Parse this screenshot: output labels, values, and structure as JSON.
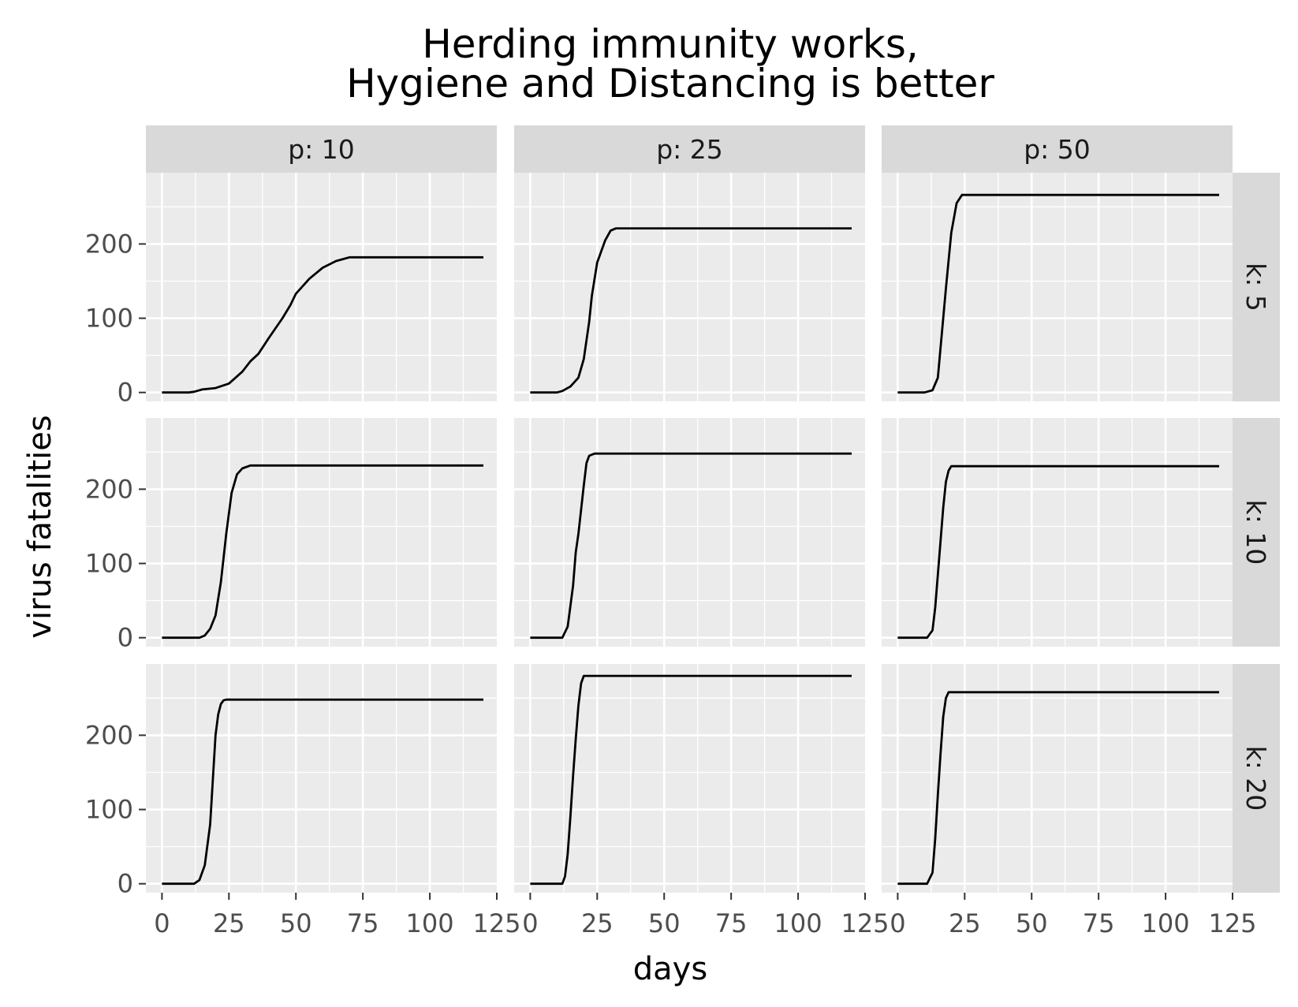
{
  "chart_data": {
    "type": "line",
    "title": [
      "Herding immunity works,",
      "Hygiene and Distancing is better"
    ],
    "xlabel": "days",
    "ylabel": "virus fatalities",
    "xlim": [
      -6,
      125
    ],
    "ylim": [
      -12,
      296
    ],
    "x_ticks": [
      0,
      25,
      50,
      75,
      100,
      125
    ],
    "y_ticks": [
      0,
      100,
      200
    ],
    "columns": [
      "p: 10",
      "p: 25",
      "p: 50"
    ],
    "rows": [
      "k: 5",
      "k: 10",
      "k: 20"
    ],
    "grid": true,
    "legend": "none",
    "colors": {
      "panel_bg": "#ebebeb",
      "grid_major": "#ffffff",
      "strip_bg": "#d9d9d9",
      "line": "#000000"
    },
    "facets": [
      {
        "row": 0,
        "col": 0,
        "x": [
          0,
          10,
          12,
          15,
          20,
          25,
          30,
          33,
          36,
          40,
          45,
          48,
          50,
          55,
          60,
          65,
          70,
          80,
          120
        ],
        "y": [
          0,
          0,
          1,
          4,
          6,
          12,
          28,
          42,
          52,
          74,
          100,
          118,
          133,
          153,
          168,
          177,
          182,
          182,
          182
        ]
      },
      {
        "row": 0,
        "col": 1,
        "x": [
          0,
          10,
          12,
          15,
          18,
          20,
          22,
          23,
          25,
          28,
          30,
          32,
          40,
          120
        ],
        "y": [
          0,
          0,
          2,
          8,
          20,
          45,
          95,
          130,
          175,
          205,
          218,
          221,
          221,
          221
        ]
      },
      {
        "row": 0,
        "col": 2,
        "x": [
          0,
          10,
          13,
          15,
          16,
          18,
          20,
          22,
          24,
          26,
          120
        ],
        "y": [
          0,
          0,
          3,
          20,
          60,
          140,
          215,
          255,
          266,
          266,
          266
        ]
      },
      {
        "row": 1,
        "col": 0,
        "x": [
          0,
          14,
          16,
          18,
          20,
          22,
          24,
          26,
          28,
          30,
          33,
          40,
          120
        ],
        "y": [
          0,
          0,
          3,
          12,
          30,
          75,
          140,
          195,
          220,
          228,
          232,
          232,
          232
        ]
      },
      {
        "row": 1,
        "col": 1,
        "x": [
          0,
          12,
          14,
          16,
          17,
          18,
          20,
          21,
          22,
          24,
          30,
          120
        ],
        "y": [
          0,
          0,
          15,
          70,
          115,
          140,
          205,
          235,
          245,
          248,
          248,
          248
        ]
      },
      {
        "row": 1,
        "col": 2,
        "x": [
          0,
          11,
          13,
          14,
          15,
          16,
          17,
          18,
          19,
          20,
          30,
          120
        ],
        "y": [
          0,
          0,
          10,
          40,
          85,
          130,
          175,
          210,
          225,
          231,
          231,
          231
        ]
      },
      {
        "row": 2,
        "col": 0,
        "x": [
          0,
          12,
          14,
          16,
          18,
          19,
          20,
          21,
          22,
          23,
          24,
          30,
          120
        ],
        "y": [
          0,
          0,
          5,
          25,
          80,
          140,
          200,
          228,
          242,
          247,
          248,
          248,
          248
        ]
      },
      {
        "row": 2,
        "col": 1,
        "x": [
          0,
          12,
          13,
          14,
          15,
          16,
          17,
          18,
          19,
          20,
          30,
          120
        ],
        "y": [
          0,
          0,
          10,
          40,
          90,
          145,
          195,
          240,
          270,
          280,
          280,
          280
        ]
      },
      {
        "row": 2,
        "col": 2,
        "x": [
          0,
          11,
          13,
          14,
          15,
          16,
          17,
          18,
          19,
          30,
          120
        ],
        "y": [
          0,
          0,
          15,
          60,
          120,
          175,
          225,
          250,
          258,
          258,
          258
        ]
      }
    ]
  }
}
